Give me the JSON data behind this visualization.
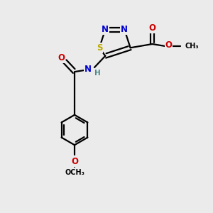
{
  "bg_color": "#ebebeb",
  "bond_color": "#000000",
  "bond_width": 1.6,
  "atom_colors": {
    "N": "#0000cc",
    "O": "#cc0000",
    "S": "#bbaa00",
    "C": "#000000",
    "H": "#4a8a8a"
  },
  "font_size": 8.5,
  "fig_size": [
    3.0,
    3.0
  ],
  "dpi": 100
}
